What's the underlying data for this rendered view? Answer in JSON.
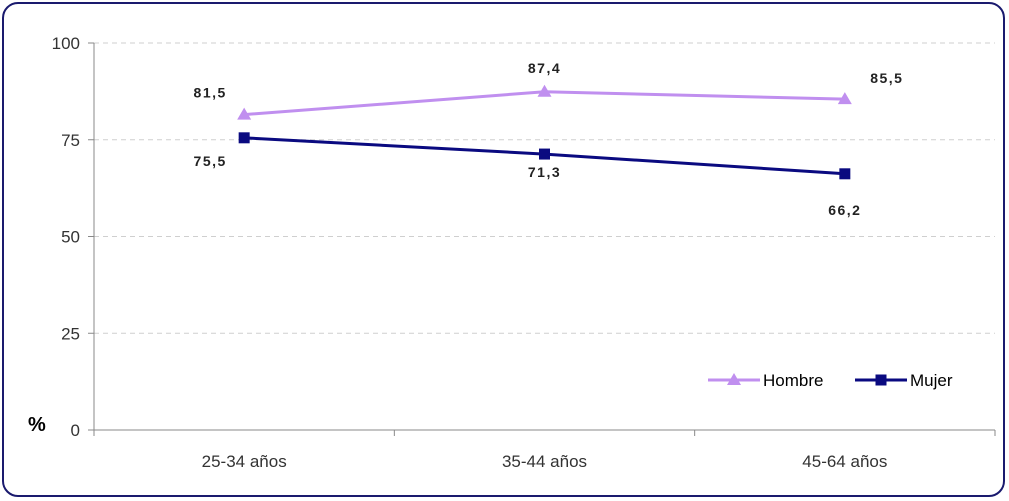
{
  "chart_data": {
    "type": "line",
    "categories": [
      "25-34 años",
      "35-44 años",
      "45-64 años"
    ],
    "series": [
      {
        "name": "Hombre",
        "values": [
          81.5,
          87.4,
          85.5
        ],
        "labels": [
          "81,5",
          "87,4",
          "85,5"
        ],
        "color": "#c08fef",
        "marker": "triangle"
      },
      {
        "name": "Mujer",
        "values": [
          75.5,
          71.3,
          66.2
        ],
        "labels": [
          "75,5",
          "71,3",
          "66,2"
        ],
        "color": "#0a0a80",
        "marker": "square"
      }
    ],
    "ylabel": "%",
    "ylim": [
      0,
      100
    ],
    "yticks": [
      "0",
      "25",
      "50",
      "75",
      "100"
    ],
    "grid": true,
    "legend_position": "bottom-right"
  }
}
